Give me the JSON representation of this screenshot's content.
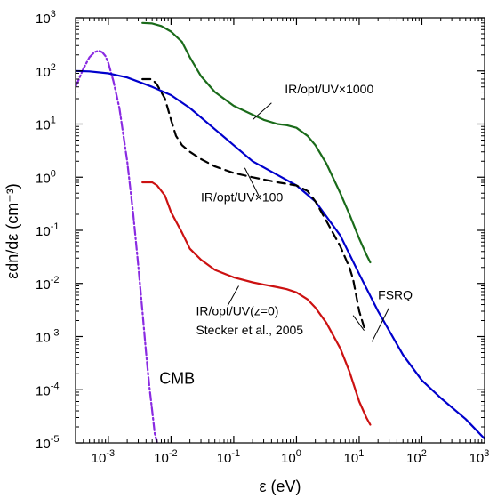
{
  "chart_data": {
    "type": "line",
    "xlabel": "ε (eV)",
    "ylabel": "εdn/dε (cm⁻³)",
    "xscale": "log",
    "yscale": "log",
    "xlim": [
      0.0003,
      1000
    ],
    "ylim": [
      1e-05,
      1000
    ],
    "grid": false,
    "x_ticks": [
      {
        "value": 0.001,
        "base": "10",
        "exp": "-3"
      },
      {
        "value": 0.01,
        "base": "10",
        "exp": "-2"
      },
      {
        "value": 0.1,
        "base": "10",
        "exp": "-1"
      },
      {
        "value": 1,
        "base": "10",
        "exp": "0"
      },
      {
        "value": 10,
        "base": "10",
        "exp": "1"
      },
      {
        "value": 100,
        "base": "10",
        "exp": "2"
      },
      {
        "value": 1000,
        "base": "10",
        "exp": "3"
      }
    ],
    "y_ticks": [
      {
        "value": 1e-05,
        "base": "10",
        "exp": "-5"
      },
      {
        "value": 0.0001,
        "base": "10",
        "exp": "-4"
      },
      {
        "value": 0.001,
        "base": "10",
        "exp": "-3"
      },
      {
        "value": 0.01,
        "base": "10",
        "exp": "-2"
      },
      {
        "value": 0.1,
        "base": "10",
        "exp": "-1"
      },
      {
        "value": 1,
        "base": "10",
        "exp": "0"
      },
      {
        "value": 10,
        "base": "10",
        "exp": "1"
      },
      {
        "value": 100,
        "base": "10",
        "exp": "2"
      },
      {
        "value": 1000,
        "base": "10",
        "exp": "3"
      }
    ],
    "series": [
      {
        "color": "#8a2be2",
        "dash": "9,3,2,3",
        "points": [
          [
            0.0003,
            50
          ],
          [
            0.0004,
            110
          ],
          [
            0.0005,
            180
          ],
          [
            0.0006,
            225
          ],
          [
            0.0007,
            240
          ],
          [
            0.0008,
            225
          ],
          [
            0.0009,
            190
          ],
          [
            0.001,
            140
          ],
          [
            0.0012,
            65
          ],
          [
            0.0015,
            20
          ],
          [
            0.002,
            2
          ],
          [
            0.0025,
            0.2
          ],
          [
            0.003,
            0.022
          ],
          [
            0.0035,
            0.003
          ],
          [
            0.004,
            0.0005
          ],
          [
            0.0045,
            0.00012
          ],
          [
            0.005,
            4e-05
          ],
          [
            0.0055,
            1.5e-05
          ],
          [
            0.006,
            1e-05
          ]
        ]
      },
      {
        "color": "#0000cc",
        "dash": "",
        "points": [
          [
            0.0003,
            100
          ],
          [
            0.0005,
            98
          ],
          [
            0.001,
            90
          ],
          [
            0.002,
            75
          ],
          [
            0.005,
            50
          ],
          [
            0.01,
            35
          ],
          [
            0.02,
            20
          ],
          [
            0.05,
            8
          ],
          [
            0.1,
            4
          ],
          [
            0.2,
            2
          ],
          [
            0.5,
            1.1
          ],
          [
            1,
            0.7
          ],
          [
            2,
            0.35
          ],
          [
            5,
            0.08
          ],
          [
            10,
            0.015
          ],
          [
            20,
            0.003
          ],
          [
            50,
            0.00045
          ],
          [
            100,
            0.00015
          ],
          [
            200,
            7e-05
          ],
          [
            500,
            2.8e-05
          ],
          [
            1000,
            1.2e-05
          ]
        ]
      },
      {
        "color": "#1a6b1a",
        "dash": "",
        "points": [
          [
            0.0035,
            800
          ],
          [
            0.005,
            780
          ],
          [
            0.007,
            700
          ],
          [
            0.01,
            550
          ],
          [
            0.015,
            350
          ],
          [
            0.02,
            180
          ],
          [
            0.03,
            80
          ],
          [
            0.05,
            40
          ],
          [
            0.1,
            22
          ],
          [
            0.2,
            15
          ],
          [
            0.3,
            12
          ],
          [
            0.5,
            10
          ],
          [
            0.7,
            9.5
          ],
          [
            1,
            8.5
          ],
          [
            1.5,
            6
          ],
          [
            2,
            4
          ],
          [
            3,
            1.8
          ],
          [
            5,
            0.5
          ],
          [
            7,
            0.2
          ],
          [
            10,
            0.07
          ],
          [
            13,
            0.035
          ],
          [
            15,
            0.025
          ]
        ]
      },
      {
        "color": "#000000",
        "dash": "9,6",
        "points": [
          [
            0.0035,
            70
          ],
          [
            0.005,
            70
          ],
          [
            0.006,
            55
          ],
          [
            0.008,
            30
          ],
          [
            0.01,
            12
          ],
          [
            0.012,
            6
          ],
          [
            0.015,
            4
          ],
          [
            0.02,
            3
          ],
          [
            0.03,
            2.2
          ],
          [
            0.05,
            1.6
          ],
          [
            0.1,
            1.2
          ],
          [
            0.2,
            1
          ],
          [
            0.5,
            0.8
          ],
          [
            1,
            0.7
          ],
          [
            1.5,
            0.55
          ],
          [
            2,
            0.35
          ],
          [
            3,
            0.15
          ],
          [
            5,
            0.05
          ],
          [
            7,
            0.02
          ],
          [
            8,
            0.012
          ],
          [
            10,
            0.003
          ],
          [
            12,
            0.0015
          ]
        ]
      },
      {
        "color": "#cc1111",
        "dash": "",
        "points": [
          [
            0.0035,
            0.8
          ],
          [
            0.005,
            0.8
          ],
          [
            0.006,
            0.7
          ],
          [
            0.008,
            0.45
          ],
          [
            0.01,
            0.22
          ],
          [
            0.015,
            0.09
          ],
          [
            0.02,
            0.045
          ],
          [
            0.03,
            0.028
          ],
          [
            0.05,
            0.018
          ],
          [
            0.1,
            0.013
          ],
          [
            0.2,
            0.0105
          ],
          [
            0.3,
            0.0095
          ],
          [
            0.5,
            0.0085
          ],
          [
            0.7,
            0.0078
          ],
          [
            1,
            0.0068
          ],
          [
            1.5,
            0.005
          ],
          [
            2,
            0.0035
          ],
          [
            3,
            0.0018
          ],
          [
            5,
            0.0006
          ],
          [
            7,
            0.00022
          ],
          [
            10,
            6e-05
          ],
          [
            13,
            3e-05
          ],
          [
            15,
            2.2e-05
          ]
        ]
      }
    ],
    "annotations": [
      {
        "text": "IR/opt/UV×1000",
        "x": 0.65,
        "y": 38,
        "size": "small"
      },
      {
        "text": "IR/opt/UV×100",
        "x": 0.03,
        "y": 0.35,
        "size": "small"
      },
      {
        "text": "IR/opt/UV(z=0)",
        "x": 0.025,
        "y": 0.0025,
        "size": "small"
      },
      {
        "text": "Stecker et al., 2005",
        "x": 0.025,
        "y": 0.0011,
        "size": "small"
      },
      {
        "text": "FSRQ",
        "x": 20,
        "y": 0.005,
        "size": "small"
      },
      {
        "text": "CMB",
        "x": 0.0065,
        "y": 0.00013,
        "size": "big"
      }
    ],
    "leaders": [
      {
        "from": [
          0.4,
          25
        ],
        "to": [
          0.2,
          12
        ]
      },
      {
        "from": [
          0.25,
          0.45
        ],
        "to": [
          0.15,
          1.5
        ]
      },
      {
        "from": [
          0.08,
          0.0038
        ],
        "to": [
          0.12,
          0.009
        ]
      },
      {
        "from": [
          8,
          0.0025
        ],
        "to": [
          12,
          0.0013
        ]
      },
      {
        "from": [
          30,
          0.0035
        ],
        "to": [
          16,
          0.0008
        ]
      }
    ]
  }
}
